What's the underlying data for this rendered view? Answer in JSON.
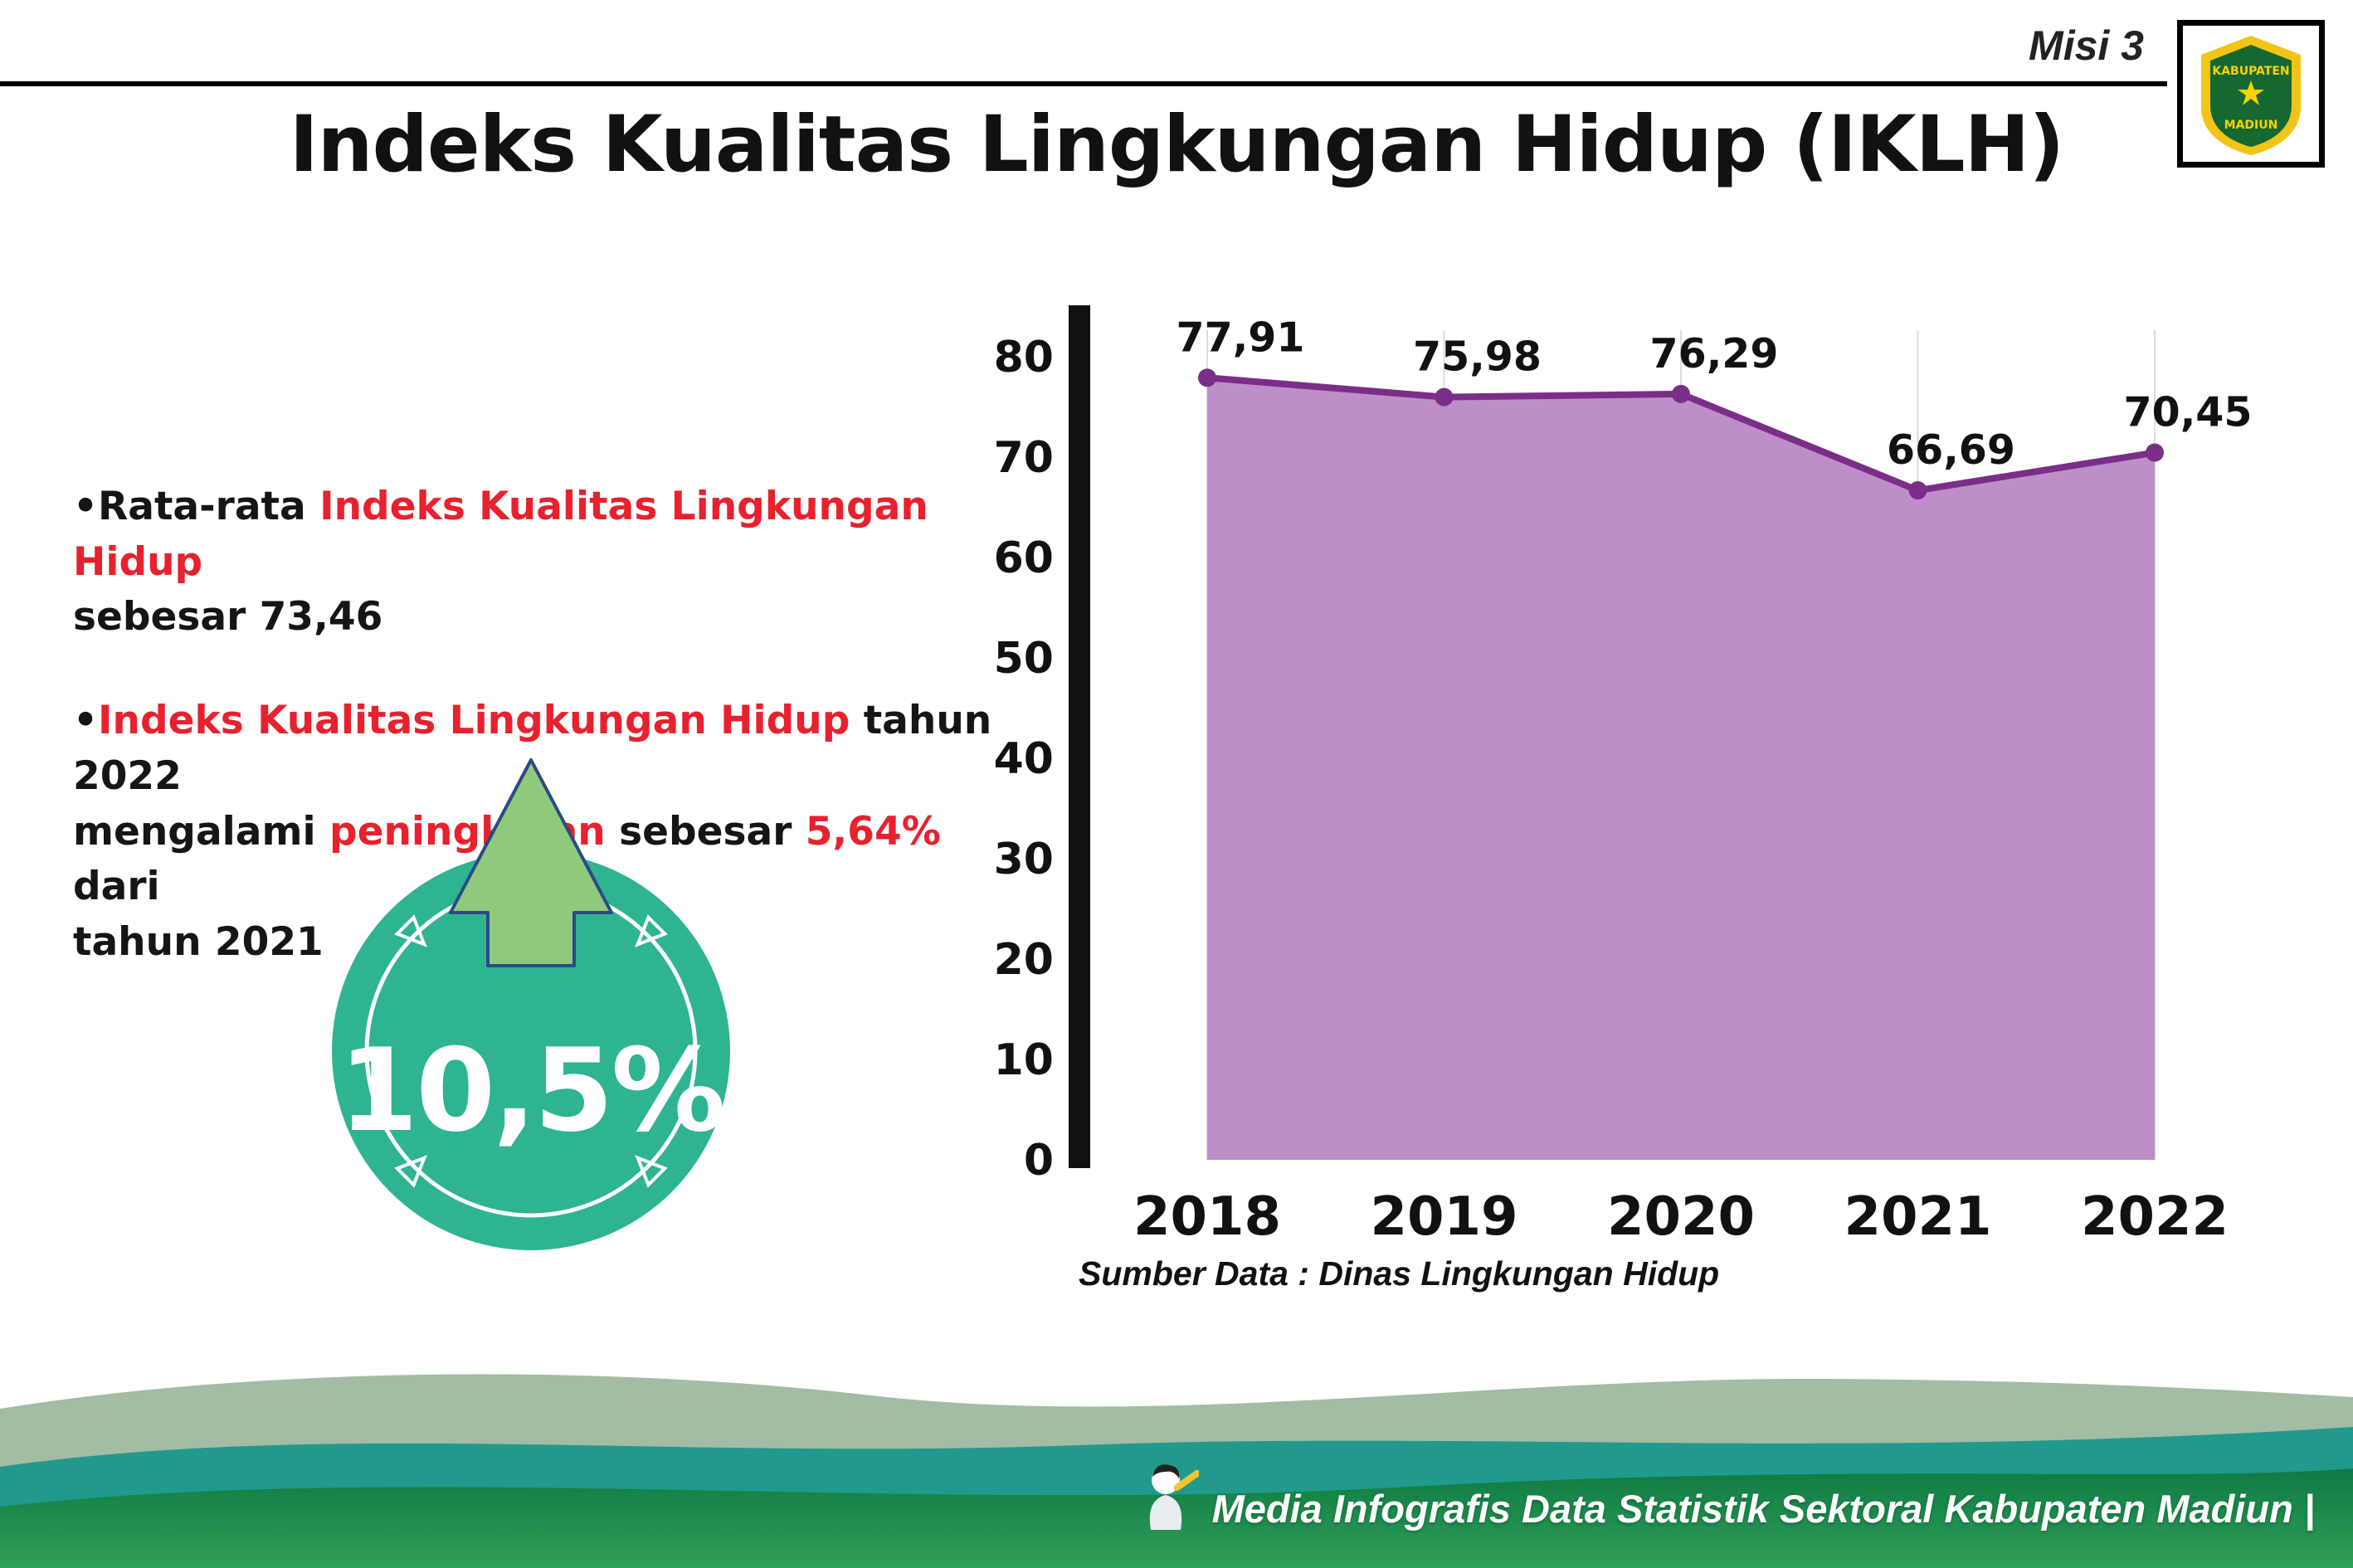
{
  "header": {
    "misi": "Misi 3",
    "logo": {
      "alt": "Kabupaten Madiun",
      "line1": "KABUPATEN",
      "line2": "MADIUN"
    }
  },
  "title": "Indeks Kualitas Lingkungan Hidup (IKLH)",
  "bullet_char": "•",
  "bullets": [
    {
      "lines": [
        [
          {
            "text": "Rata-rata ",
            "color": "black"
          },
          {
            "text": "Indeks Kualitas Lingkungan Hidup",
            "color": "red"
          }
        ],
        [
          {
            "text": "sebesar 73,46",
            "color": "black"
          }
        ]
      ]
    },
    {
      "lines": [
        [
          {
            "text": "Indeks Kualitas Lingkungan Hidup",
            "color": "red"
          },
          {
            "text": " tahun 2022",
            "color": "black"
          }
        ],
        [
          {
            "text": "mengalami ",
            "color": "black"
          },
          {
            "text": "peningkatan",
            "color": "red"
          },
          {
            "text": " sebesar ",
            "color": "black"
          },
          {
            "text": "5,64%",
            "color": "red"
          },
          {
            "text": " dari",
            "color": "black"
          }
        ],
        [
          {
            "text": "tahun 2021",
            "color": "black"
          }
        ]
      ]
    }
  ],
  "badge": {
    "value": "10,5%"
  },
  "chart_data": {
    "type": "area",
    "title": "",
    "categories": [
      "2018",
      "2019",
      "2020",
      "2021",
      "2022"
    ],
    "values": [
      77.91,
      75.98,
      76.29,
      66.69,
      70.45
    ],
    "value_labels": [
      "77,91",
      "75,98",
      "76,29",
      "66,69",
      "70,45"
    ],
    "ylim": [
      0,
      80
    ],
    "ytick_step": 10,
    "grid": "vertical-light",
    "legend": "none",
    "fill_color": "#bd8ec7",
    "line_color": "#7b2e88",
    "source": "Sumber Data : Dinas Lingkungan Hidup"
  },
  "footer": {
    "text": "Media Infografis Data Statistik Sektoral Kabupaten Madiun |"
  },
  "colors": {
    "accent_red": "#e8212e",
    "badge_teal": "#2fb492",
    "arrow_green": "#8fc97b",
    "arrow_outline": "#2b4a86",
    "footer_sage": "#a3bca4",
    "footer_teal": "#21998c",
    "footer_green_dark": "#0f7a43",
    "footer_green_light": "#2fa057"
  }
}
